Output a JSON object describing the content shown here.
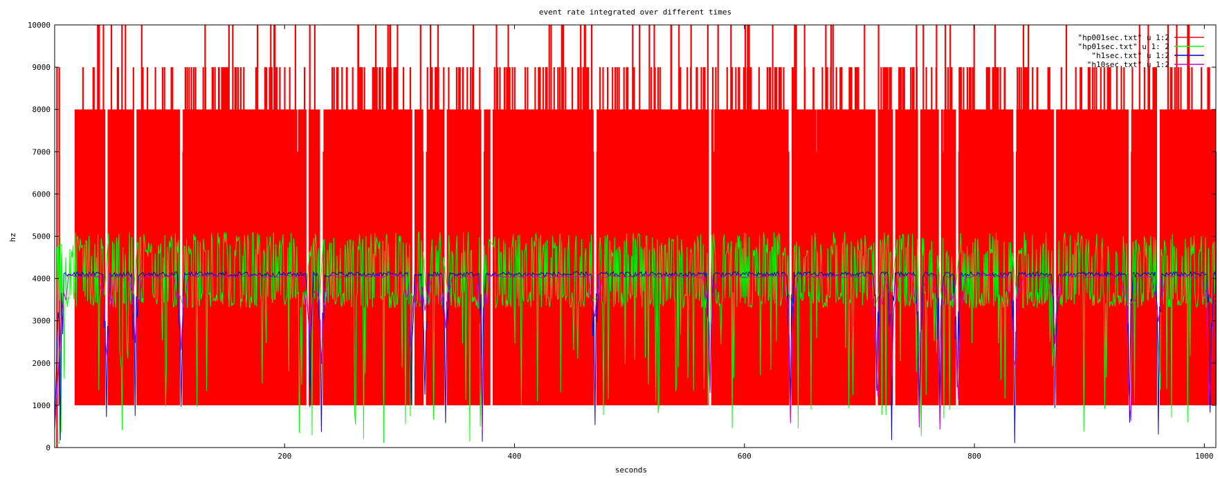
{
  "chart_data": {
    "type": "line",
    "title": "event rate integrated over different times",
    "xlabel": "seconds",
    "ylabel": "hz",
    "xlim": [
      0,
      1010
    ],
    "ylim": [
      0,
      10000
    ],
    "x_ticks": [
      200,
      400,
      600,
      800,
      1000
    ],
    "y_ticks": [
      0,
      1000,
      2000,
      3000,
      4000,
      5000,
      6000,
      7000,
      8000,
      9000,
      10000
    ],
    "grid": false,
    "legend_position": "top-right",
    "series": [
      {
        "name": "\"hp001sec.txt\" u 1:2",
        "color": "#ff0000",
        "description_level": "0.01 s bins: oscillates between 1000 and 8000 Hz, occasional spikes to 9000-10000 Hz, gaps at run pauses",
        "range": [
          1000,
          8000
        ],
        "spikes_to": [
          9000,
          10000
        ]
      },
      {
        "name": "\"hp01sec.txt\" u 1: 2",
        "color": "#00ff00",
        "range": [
          3300,
          4900
        ],
        "dips_to": [
          100,
          1000
        ],
        "spikes_to": [
          5100
        ]
      },
      {
        "name": "\"h1sec.txt\" u 1:2",
        "color": "#0000cc",
        "typical": 4100,
        "dips_to": [
          100,
          1500
        ]
      },
      {
        "name": "\"h10sec.txt\" u 1:2",
        "color": "#cc00cc",
        "typical": 4050,
        "dips_to": [
          400,
          3300
        ]
      }
    ],
    "gaps_seconds": [
      45,
      70,
      110,
      220,
      232,
      312,
      322,
      340,
      372,
      380,
      470,
      570,
      640,
      715,
      730,
      752,
      770,
      785,
      835,
      870,
      935,
      960
    ],
    "dips_seconds": [
      5,
      45,
      70,
      110,
      222,
      232,
      310,
      322,
      340,
      372,
      470,
      570,
      640,
      715,
      728,
      752,
      770,
      785,
      835,
      870,
      935,
      960,
      1005
    ]
  }
}
